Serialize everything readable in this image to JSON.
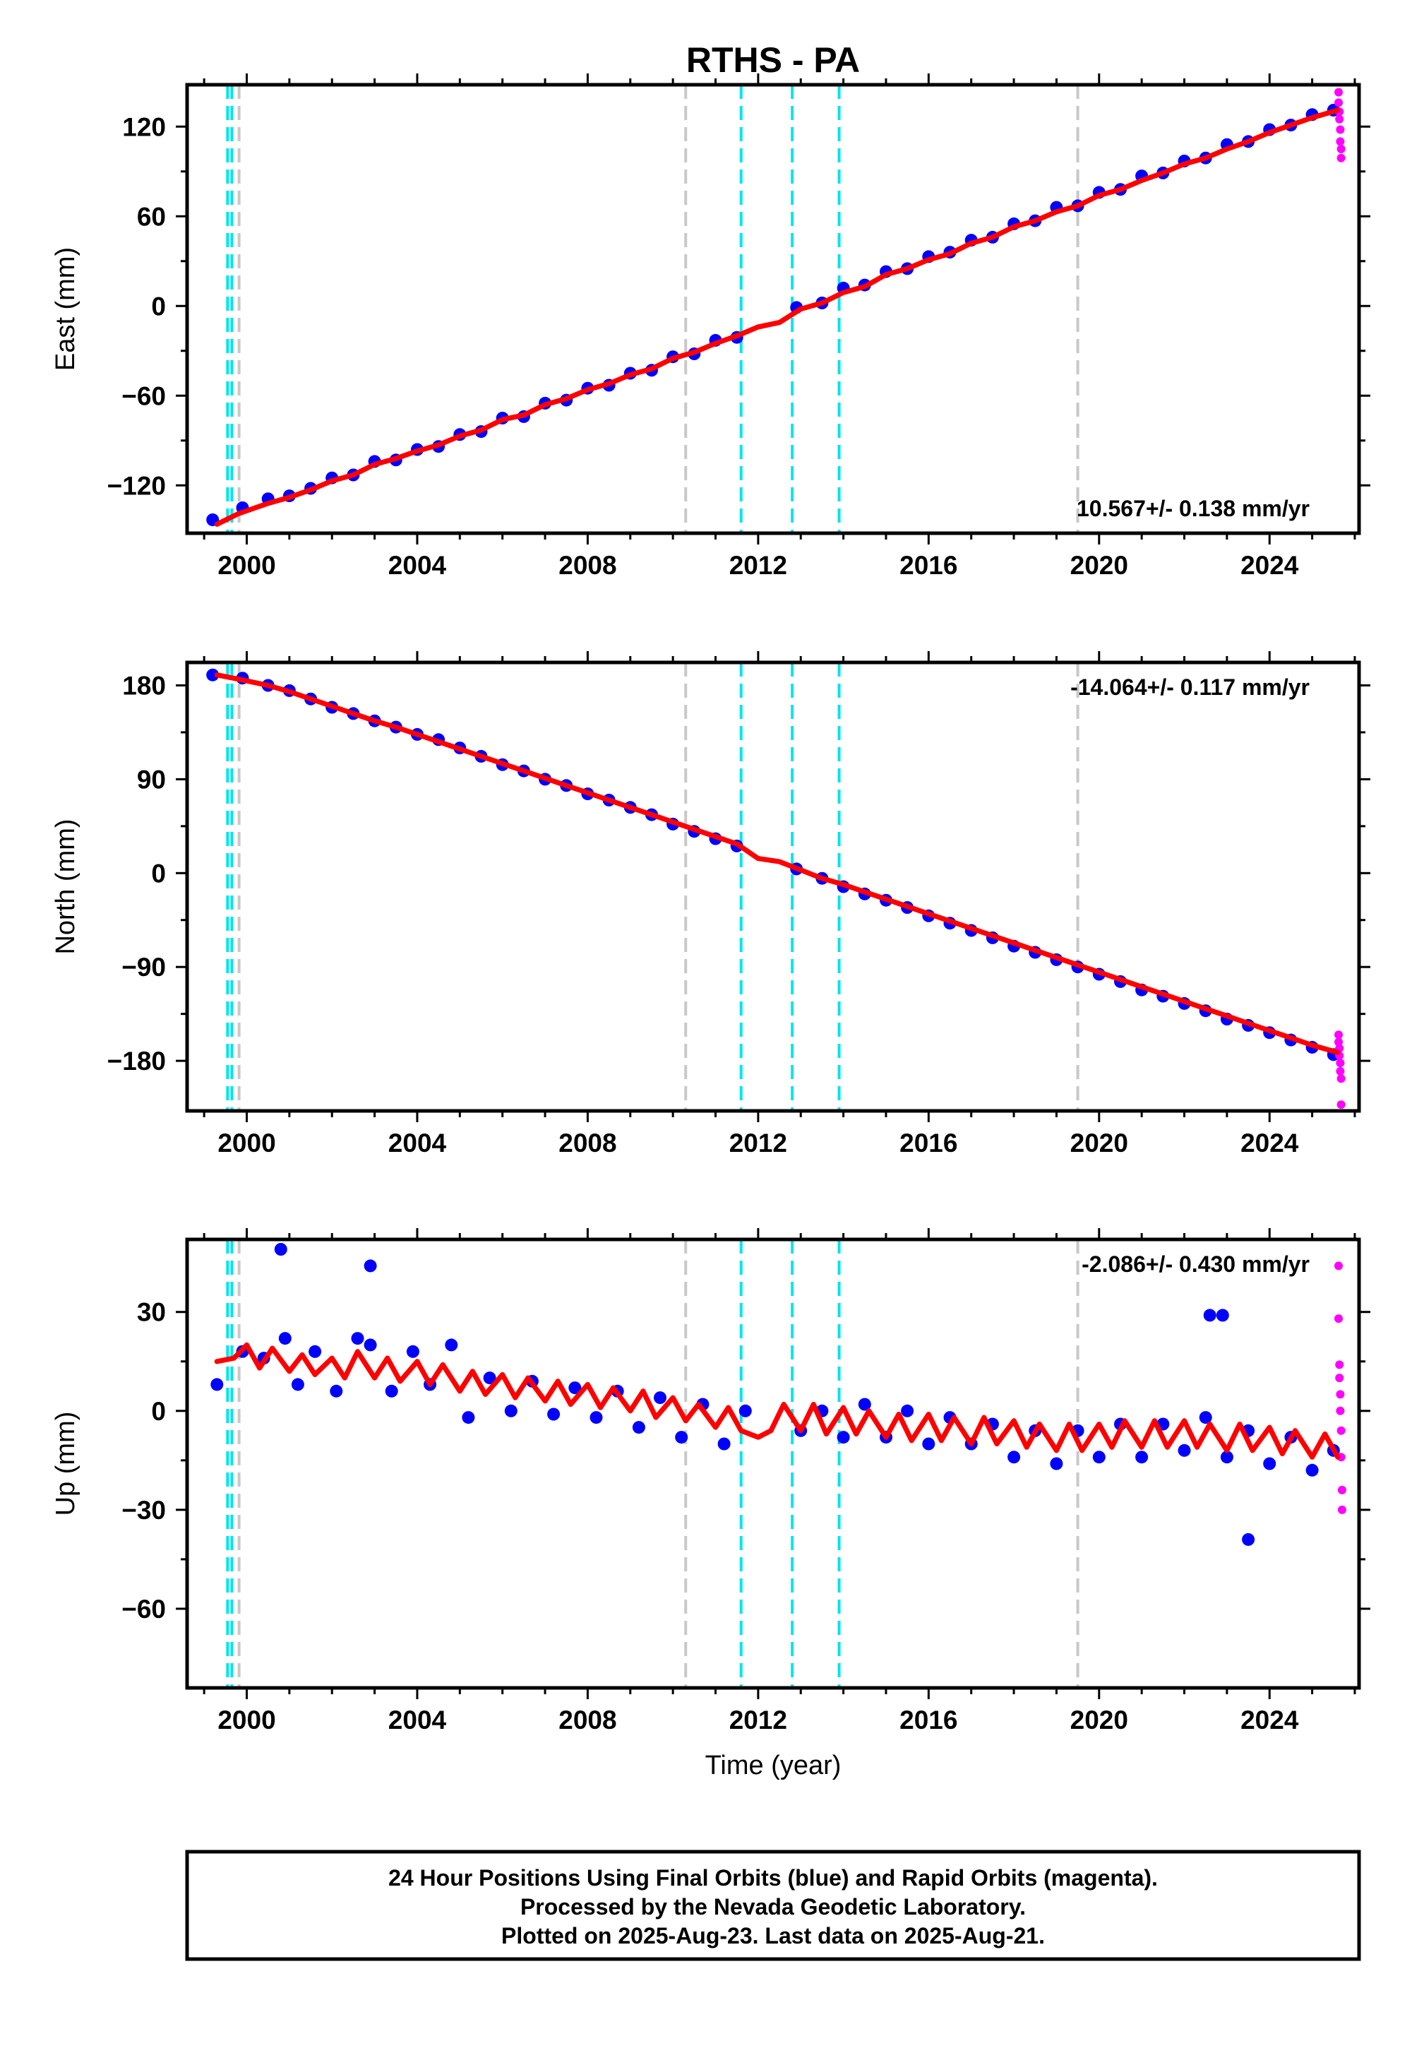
{
  "footer": {
    "lines": [
      "24 Hour Positions Using Final Orbits (blue) and Rapid Orbits (magenta).",
      "Processed by the Nevada Geodetic Laboratory.",
      "Plotted on 2025-Aug-23. Last data on 2025-Aug-21."
    ]
  },
  "chart_data": [
    {
      "type": "scatter",
      "title": "RTHS - PA",
      "ylabel": "East (mm)",
      "xlabel": "",
      "xlim": [
        1998.6,
        2026.1
      ],
      "ylim": [
        -152,
        148
      ],
      "x_ticks": [
        2000,
        2004,
        2008,
        2012,
        2016,
        2020,
        2024
      ],
      "y_ticks": [
        -120,
        -60,
        0,
        60,
        120
      ],
      "rate_text": "10.567+/- 0.138 mm/yr",
      "rate_position": "bottom-right",
      "series": [
        {
          "color": "#0000ff",
          "x": [
            1999.2,
            1999.9,
            2000.5,
            2001.0,
            2001.5,
            2002.0,
            2002.5,
            2003.0,
            2003.5,
            2004.0,
            2004.5,
            2005.0,
            2005.5,
            2006.0,
            2006.5,
            2007.0,
            2007.5,
            2008.0,
            2008.5,
            2009.0,
            2009.5,
            2010.0,
            2010.5,
            2011.0,
            2011.5,
            2012.9,
            2013.5,
            2014.0,
            2014.5,
            2015.0,
            2015.5,
            2016.0,
            2016.5,
            2017.0,
            2017.5,
            2018.0,
            2018.5,
            2019.0,
            2019.5,
            2020.0,
            2020.5,
            2021.0,
            2021.5,
            2022.0,
            2022.5,
            2023.0,
            2023.5,
            2024.0,
            2024.5,
            2025.0,
            2025.5
          ],
          "y": [
            -143,
            -135,
            -129,
            -127,
            -122,
            -115,
            -113,
            -104,
            -103,
            -96,
            -94,
            -86,
            -84,
            -75,
            -74,
            -65,
            -63,
            -55,
            -53,
            -45,
            -43,
            -34,
            -32,
            -23,
            -21,
            -1,
            2,
            12,
            14,
            23,
            25,
            33,
            36,
            44,
            46,
            55,
            57,
            66,
            67,
            76,
            78,
            87,
            89,
            97,
            99,
            108,
            110,
            118,
            121,
            128,
            131
          ]
        },
        {
          "color": "#ff00ff",
          "x": [
            2025.62,
            2025.62,
            2025.64,
            2025.64,
            2025.66,
            2025.66,
            2025.68,
            2025.68
          ],
          "y": [
            143,
            136,
            130,
            125,
            118,
            110,
            105,
            99
          ]
        },
        {
          "color": "#ff0000",
          "x": [
            1999.3,
            1999.8,
            2000.5,
            2001.0,
            2001.5,
            2002.0,
            2002.5,
            2003.0,
            2003.5,
            2004.0,
            2004.5,
            2005.0,
            2005.5,
            2006.0,
            2006.5,
            2007.0,
            2007.5,
            2008.0,
            2008.5,
            2009.0,
            2009.5,
            2010.0,
            2010.5,
            2011.0,
            2011.5,
            2012.0,
            2012.5,
            2013.0,
            2013.5,
            2014.0,
            2014.5,
            2015.0,
            2015.5,
            2016.0,
            2016.5,
            2017.0,
            2017.5,
            2018.0,
            2018.5,
            2019.0,
            2019.5,
            2020.0,
            2020.5,
            2021.0,
            2021.5,
            2022.0,
            2022.5,
            2023.0,
            2023.5,
            2024.0,
            2024.5,
            2025.0,
            2025.6
          ],
          "y": [
            -146,
            -139,
            -132,
            -128,
            -123,
            -117,
            -113,
            -106,
            -102,
            -97,
            -93,
            -87,
            -83,
            -76,
            -73,
            -66,
            -62,
            -56,
            -52,
            -46,
            -42,
            -35,
            -31,
            -25,
            -20,
            -14,
            -11,
            -2,
            2,
            9,
            13,
            21,
            25,
            31,
            35,
            42,
            46,
            53,
            57,
            63,
            67,
            74,
            78,
            84,
            89,
            95,
            99,
            105,
            110,
            116,
            121,
            126,
            131
          ]
        }
      ],
      "vlines": [
        {
          "x": 1999.55,
          "color": "#00e5ee",
          "style": "dashed"
        },
        {
          "x": 1999.65,
          "color": "#00e5ee",
          "style": "dashed"
        },
        {
          "x": 1999.82,
          "color": "#c8c8c8",
          "style": "dashed"
        },
        {
          "x": 2010.3,
          "color": "#c8c8c8",
          "style": "dashed"
        },
        {
          "x": 2011.6,
          "color": "#00e5ee",
          "style": "dashed"
        },
        {
          "x": 2012.8,
          "color": "#00e5ee",
          "style": "dashed"
        },
        {
          "x": 2013.9,
          "color": "#00e5ee",
          "style": "dashed"
        },
        {
          "x": 2019.5,
          "color": "#c8c8c8",
          "style": "dashed"
        }
      ]
    },
    {
      "type": "scatter",
      "title": "",
      "ylabel": "North (mm)",
      "xlabel": "",
      "xlim": [
        1998.6,
        2026.1
      ],
      "ylim": [
        -228,
        202
      ],
      "x_ticks": [
        2000,
        2004,
        2008,
        2012,
        2016,
        2020,
        2024
      ],
      "y_ticks": [
        -180,
        -90,
        0,
        90,
        180
      ],
      "rate_text": "-14.064+/- 0.117 mm/yr",
      "rate_position": "top-right",
      "series": [
        {
          "color": "#0000ff",
          "x": [
            1999.2,
            1999.9,
            2000.5,
            2001.0,
            2001.5,
            2002.0,
            2002.5,
            2003.0,
            2003.5,
            2004.0,
            2004.5,
            2005.0,
            2005.5,
            2006.0,
            2006.5,
            2007.0,
            2007.5,
            2008.0,
            2008.5,
            2009.0,
            2009.5,
            2010.0,
            2010.5,
            2011.0,
            2011.5,
            2012.9,
            2013.5,
            2014.0,
            2014.5,
            2015.0,
            2015.5,
            2016.0,
            2016.5,
            2017.0,
            2017.5,
            2018.0,
            2018.5,
            2019.0,
            2019.5,
            2020.0,
            2020.5,
            2021.0,
            2021.5,
            2022.0,
            2022.5,
            2023.0,
            2023.5,
            2024.0,
            2024.5,
            2025.0,
            2025.5
          ],
          "y": [
            190,
            187,
            180,
            175,
            167,
            159,
            153,
            146,
            140,
            133,
            128,
            120,
            112,
            104,
            98,
            90,
            84,
            76,
            70,
            63,
            56,
            47,
            40,
            33,
            26,
            4,
            -5,
            -13,
            -20,
            -26,
            -33,
            -41,
            -48,
            -55,
            -62,
            -70,
            -76,
            -83,
            -90,
            -97,
            -104,
            -112,
            -118,
            -125,
            -132,
            -140,
            -146,
            -153,
            -160,
            -167,
            -174
          ]
        },
        {
          "color": "#ff00ff",
          "x": [
            2025.62,
            2025.62,
            2025.64,
            2025.64,
            2025.66,
            2025.66,
            2025.68,
            2025.68
          ],
          "y": [
            -155,
            -162,
            -168,
            -175,
            -182,
            -190,
            -197,
            -222
          ]
        },
        {
          "color": "#ff0000",
          "x": [
            1999.3,
            1999.8,
            2000.5,
            2001.0,
            2001.5,
            2002.0,
            2002.5,
            2003.0,
            2003.5,
            2004.0,
            2004.5,
            2005.0,
            2005.5,
            2006.0,
            2006.5,
            2007.0,
            2007.5,
            2008.0,
            2008.5,
            2009.0,
            2009.5,
            2010.0,
            2010.5,
            2011.0,
            2011.5,
            2012.0,
            2012.5,
            2013.0,
            2013.5,
            2014.0,
            2014.5,
            2015.0,
            2015.5,
            2016.0,
            2016.5,
            2017.0,
            2017.5,
            2018.0,
            2018.5,
            2019.0,
            2019.5,
            2020.0,
            2020.5,
            2021.0,
            2021.5,
            2022.0,
            2022.5,
            2023.0,
            2023.5,
            2024.0,
            2024.5,
            2025.0,
            2025.6
          ],
          "y": [
            190,
            186,
            180,
            174,
            167,
            160,
            153,
            146,
            140,
            133,
            126,
            119,
            112,
            105,
            98,
            91,
            84,
            77,
            70,
            63,
            56,
            49,
            42,
            35,
            28,
            14,
            11,
            3,
            -5,
            -11,
            -18,
            -25,
            -32,
            -39,
            -46,
            -53,
            -60,
            -67,
            -74,
            -81,
            -88,
            -95,
            -102,
            -109,
            -116,
            -123,
            -130,
            -137,
            -144,
            -151,
            -158,
            -165,
            -172
          ]
        }
      ],
      "vlines": [
        {
          "x": 1999.55,
          "color": "#00e5ee",
          "style": "dashed"
        },
        {
          "x": 1999.65,
          "color": "#00e5ee",
          "style": "dashed"
        },
        {
          "x": 1999.82,
          "color": "#c8c8c8",
          "style": "dashed"
        },
        {
          "x": 2010.3,
          "color": "#c8c8c8",
          "style": "dashed"
        },
        {
          "x": 2011.6,
          "color": "#00e5ee",
          "style": "dashed"
        },
        {
          "x": 2012.8,
          "color": "#00e5ee",
          "style": "dashed"
        },
        {
          "x": 2013.9,
          "color": "#00e5ee",
          "style": "dashed"
        },
        {
          "x": 2019.5,
          "color": "#c8c8c8",
          "style": "dashed"
        }
      ]
    },
    {
      "type": "scatter",
      "title": "",
      "ylabel": "Up (mm)",
      "xlabel": "Time (year)",
      "xlim": [
        1998.6,
        2026.1
      ],
      "ylim": [
        -84,
        52
      ],
      "x_ticks": [
        2000,
        2004,
        2008,
        2012,
        2016,
        2020,
        2024
      ],
      "y_ticks": [
        -60,
        -30,
        0,
        30
      ],
      "rate_text": "-2.086+/- 0.430 mm/yr",
      "rate_position": "top-right",
      "series": [
        {
          "color": "#0000ff",
          "x": [
            1999.3,
            1999.9,
            2000.4,
            2000.9,
            2001.2,
            2001.6,
            2002.1,
            2002.6,
            2002.9,
            2003.4,
            2003.9,
            2004.3,
            2004.8,
            2005.2,
            2005.7,
            2006.2,
            2006.7,
            2007.2,
            2007.7,
            2008.2,
            2008.7,
            2009.2,
            2009.7,
            2010.2,
            2010.7,
            2011.2,
            2011.7,
            2013.0,
            2013.5,
            2014.0,
            2014.5,
            2015.0,
            2015.5,
            2016.0,
            2016.5,
            2017.0,
            2017.5,
            2018.0,
            2018.5,
            2019.0,
            2019.5,
            2020.0,
            2020.5,
            2021.0,
            2021.5,
            2022.0,
            2022.5,
            2023.0,
            2023.5,
            2024.0,
            2024.5,
            2025.0,
            2025.5,
            2000.8,
            2002.9,
            2022.6,
            2022.9,
            2023.5
          ],
          "y": [
            8,
            18,
            16,
            22,
            8,
            18,
            6,
            22,
            20,
            6,
            18,
            8,
            20,
            -2,
            10,
            0,
            9,
            -1,
            7,
            -2,
            6,
            -5,
            4,
            -8,
            2,
            -10,
            0,
            -6,
            0,
            -8,
            2,
            -8,
            0,
            -10,
            -2,
            -10,
            -4,
            -14,
            -6,
            -16,
            -6,
            -14,
            -4,
            -14,
            -4,
            -12,
            -2,
            -14,
            -6,
            -16,
            -8,
            -18,
            -12,
            49,
            44,
            29,
            29,
            -39
          ]
        },
        {
          "color": "#ff00ff",
          "x": [
            2025.62,
            2025.62,
            2025.64,
            2025.64,
            2025.66,
            2025.66,
            2025.68,
            2025.68,
            2025.7,
            2025.7
          ],
          "y": [
            44,
            28,
            14,
            10,
            5,
            0,
            -6,
            -14,
            -24,
            -30
          ]
        },
        {
          "color": "#ff0000",
          "x": [
            1999.3,
            1999.7,
            2000.0,
            2000.3,
            2000.6,
            2001.0,
            2001.3,
            2001.6,
            2002.0,
            2002.3,
            2002.6,
            2003.0,
            2003.3,
            2003.6,
            2004.0,
            2004.3,
            2004.6,
            2005.0,
            2005.3,
            2005.6,
            2006.0,
            2006.3,
            2006.6,
            2007.0,
            2007.3,
            2007.6,
            2008.0,
            2008.3,
            2008.6,
            2009.0,
            2009.3,
            2009.6,
            2010.0,
            2010.3,
            2010.6,
            2011.0,
            2011.3,
            2011.6,
            2012.0,
            2012.3,
            2012.6,
            2013.0,
            2013.3,
            2013.6,
            2014.0,
            2014.3,
            2014.6,
            2015.0,
            2015.3,
            2015.6,
            2016.0,
            2016.3,
            2016.6,
            2017.0,
            2017.3,
            2017.6,
            2018.0,
            2018.3,
            2018.6,
            2019.0,
            2019.3,
            2019.6,
            2020.0,
            2020.3,
            2020.6,
            2021.0,
            2021.3,
            2021.6,
            2022.0,
            2022.3,
            2022.6,
            2023.0,
            2023.3,
            2023.6,
            2024.0,
            2024.3,
            2024.6,
            2025.0,
            2025.3,
            2025.6
          ],
          "y": [
            15,
            16,
            20,
            13,
            19,
            12,
            17,
            11,
            16,
            10,
            18,
            10,
            16,
            9,
            15,
            8,
            14,
            6,
            12,
            5,
            11,
            4,
            10,
            3,
            9,
            2,
            8,
            1,
            7,
            0,
            6,
            -2,
            4,
            -3,
            2,
            -5,
            1,
            -6,
            -8,
            -6,
            2,
            -6,
            2,
            -7,
            1,
            -7,
            0,
            -8,
            -1,
            -9,
            -1,
            -9,
            -2,
            -10,
            -2,
            -10,
            -3,
            -11,
            -4,
            -12,
            -4,
            -12,
            -4,
            -11,
            -3,
            -11,
            -3,
            -11,
            -3,
            -11,
            -4,
            -12,
            -4,
            -12,
            -5,
            -13,
            -6,
            -14,
            -7,
            -14
          ]
        }
      ],
      "vlines": [
        {
          "x": 1999.55,
          "color": "#00e5ee",
          "style": "dashed"
        },
        {
          "x": 1999.65,
          "color": "#00e5ee",
          "style": "dashed"
        },
        {
          "x": 1999.82,
          "color": "#c8c8c8",
          "style": "dashed"
        },
        {
          "x": 2010.3,
          "color": "#c8c8c8",
          "style": "dashed"
        },
        {
          "x": 2011.6,
          "color": "#00e5ee",
          "style": "dashed"
        },
        {
          "x": 2012.8,
          "color": "#00e5ee",
          "style": "dashed"
        },
        {
          "x": 2013.9,
          "color": "#00e5ee",
          "style": "dashed"
        },
        {
          "x": 2019.5,
          "color": "#c8c8c8",
          "style": "dashed"
        }
      ]
    }
  ]
}
